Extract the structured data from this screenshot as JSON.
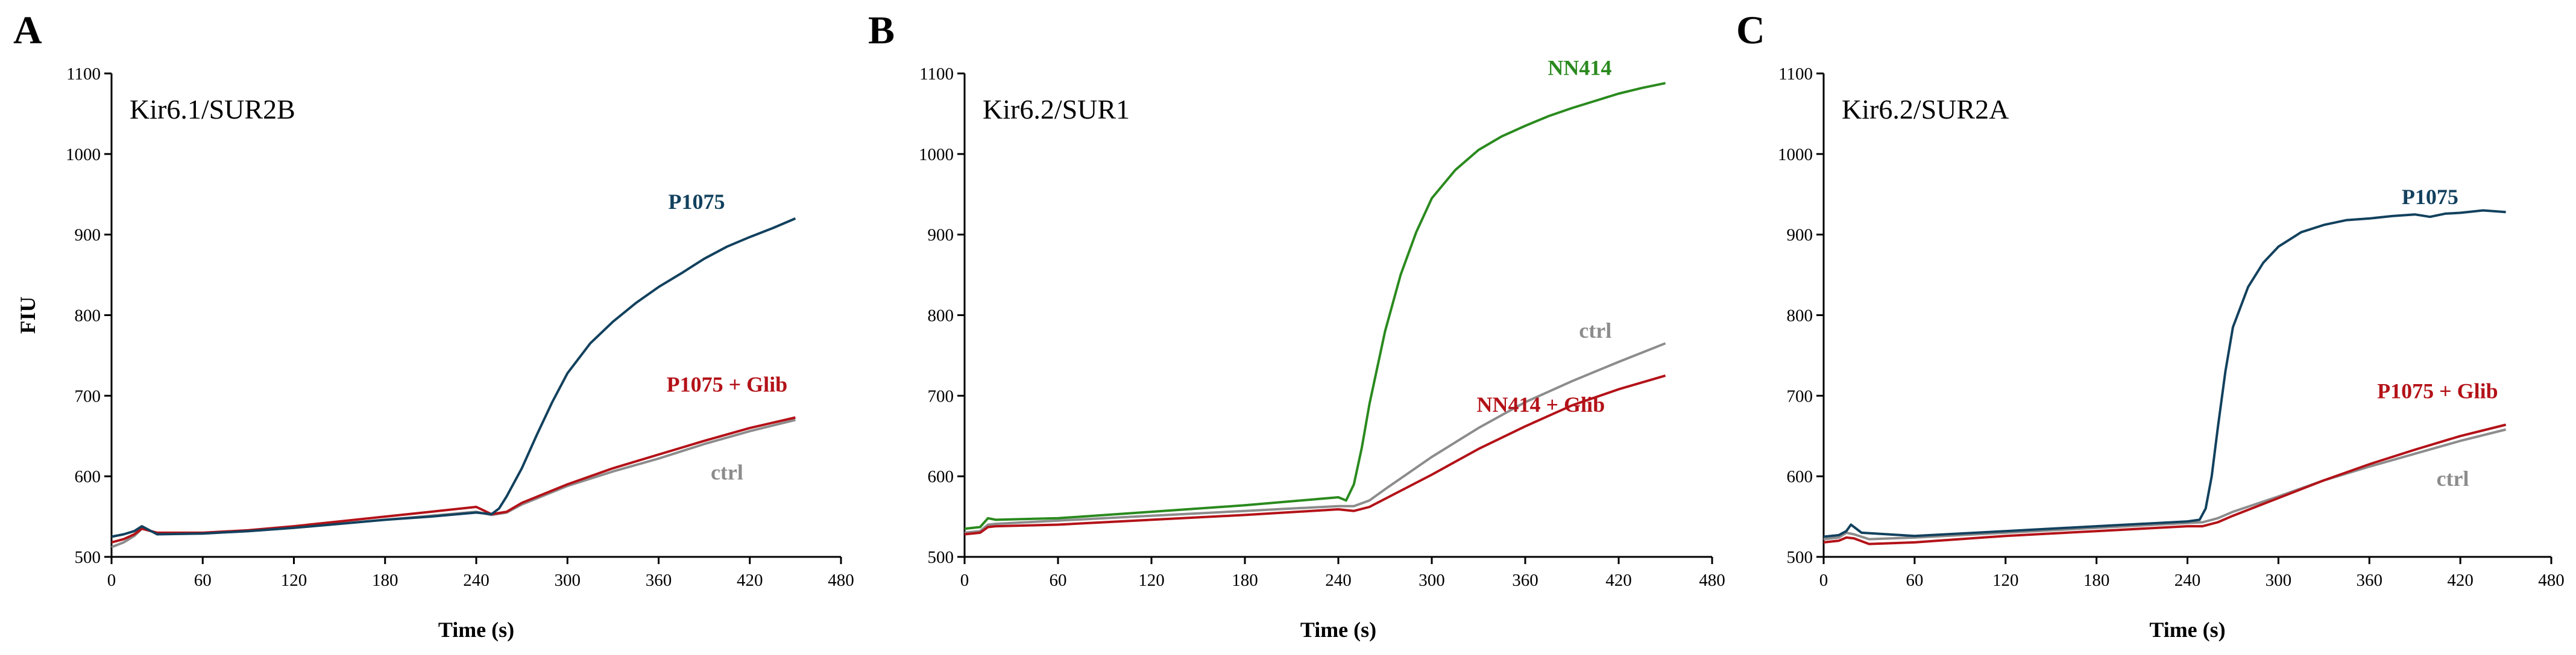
{
  "ylabel": "FIU",
  "chart_data": [
    {
      "type": "line",
      "panel": "A",
      "title": "Kir6.1/SUR2B",
      "xlabel": "Time (s)",
      "ylabel": "FIU",
      "xlim": [
        0,
        480
      ],
      "ylim": [
        500,
        1100
      ],
      "xticks": [
        0,
        60,
        120,
        180,
        240,
        300,
        360,
        420,
        480
      ],
      "yticks": [
        500,
        600,
        700,
        800,
        900,
        1000,
        1100
      ],
      "series": [
        {
          "name": "ctrl",
          "color": "#8c8c8c",
          "label_pos": [
            405,
            596
          ],
          "x": [
            0,
            8,
            15,
            20,
            30,
            60,
            90,
            120,
            150,
            180,
            210,
            240,
            250,
            260,
            270,
            300,
            330,
            360,
            390,
            420,
            450
          ],
          "y": [
            512,
            518,
            526,
            535,
            530,
            529,
            532,
            536,
            541,
            546,
            551,
            556,
            552,
            555,
            565,
            588,
            606,
            622,
            640,
            656,
            670
          ]
        },
        {
          "name": "P1075 + Glib",
          "color": "#b31218",
          "label_pos": [
            405,
            705
          ],
          "x": [
            0,
            8,
            15,
            20,
            30,
            60,
            90,
            120,
            150,
            180,
            210,
            240,
            250,
            260,
            270,
            300,
            330,
            360,
            390,
            420,
            450
          ],
          "y": [
            518,
            522,
            528,
            535,
            530,
            530,
            533,
            538,
            544,
            550,
            556,
            562,
            553,
            556,
            567,
            590,
            610,
            627,
            644,
            660,
            673
          ]
        },
        {
          "name": "P1075",
          "color": "#12415e",
          "label_pos": [
            385,
            932
          ],
          "x": [
            0,
            8,
            15,
            20,
            30,
            60,
            90,
            120,
            150,
            180,
            210,
            240,
            250,
            255,
            260,
            270,
            280,
            290,
            300,
            315,
            330,
            345,
            360,
            375,
            390,
            405,
            420,
            435,
            450
          ],
          "y": [
            525,
            528,
            532,
            538,
            528,
            529,
            532,
            536,
            541,
            546,
            550,
            555,
            553,
            560,
            575,
            610,
            652,
            692,
            728,
            765,
            792,
            815,
            835,
            852,
            870,
            885,
            897,
            908,
            920
          ]
        }
      ]
    },
    {
      "type": "line",
      "panel": "B",
      "title": "Kir6.2/SUR1",
      "xlabel": "Time (s)",
      "ylabel": "",
      "xlim": [
        0,
        480
      ],
      "ylim": [
        500,
        1100
      ],
      "xticks": [
        0,
        60,
        120,
        180,
        240,
        300,
        360,
        420,
        480
      ],
      "yticks": [
        500,
        600,
        700,
        800,
        900,
        1000,
        1100
      ],
      "series": [
        {
          "name": "ctrl",
          "color": "#8c8c8c",
          "label_pos": [
            405,
            772
          ],
          "x": [
            0,
            10,
            15,
            20,
            60,
            120,
            180,
            240,
            250,
            260,
            270,
            300,
            330,
            360,
            390,
            420,
            450
          ],
          "y": [
            530,
            532,
            540,
            541,
            545,
            551,
            557,
            563,
            563,
            570,
            584,
            624,
            660,
            692,
            718,
            742,
            765
          ]
        },
        {
          "name": "NN414 + Glib",
          "color": "#b31218",
          "label_pos": [
            370,
            680
          ],
          "x": [
            0,
            10,
            15,
            20,
            60,
            120,
            180,
            240,
            250,
            260,
            270,
            300,
            330,
            360,
            390,
            420,
            450
          ],
          "y": [
            528,
            530,
            537,
            538,
            540,
            546,
            552,
            559,
            557,
            562,
            572,
            602,
            634,
            662,
            688,
            708,
            725
          ]
        },
        {
          "name": "NN414",
          "color": "#2a8a1e",
          "label_pos": [
            395,
            1098
          ],
          "x": [
            0,
            10,
            15,
            20,
            60,
            120,
            180,
            240,
            245,
            250,
            255,
            260,
            270,
            280,
            290,
            300,
            315,
            330,
            345,
            360,
            375,
            390,
            405,
            420,
            435,
            450
          ],
          "y": [
            535,
            537,
            548,
            546,
            548,
            556,
            564,
            574,
            570,
            590,
            635,
            690,
            780,
            850,
            903,
            945,
            980,
            1005,
            1022,
            1035,
            1047,
            1057,
            1066,
            1075,
            1082,
            1088
          ]
        }
      ]
    },
    {
      "type": "line",
      "panel": "C",
      "title": "Kir6.2/SUR2A",
      "xlabel": "Time (s)",
      "ylabel": "",
      "xlim": [
        0,
        480
      ],
      "ylim": [
        500,
        1100
      ],
      "xticks": [
        0,
        60,
        120,
        180,
        240,
        300,
        360,
        420,
        480
      ],
      "yticks": [
        500,
        600,
        700,
        800,
        900,
        1000,
        1100
      ],
      "series": [
        {
          "name": "ctrl",
          "color": "#8c8c8c",
          "label_pos": [
            415,
            588
          ],
          "x": [
            0,
            10,
            15,
            20,
            30,
            60,
            120,
            180,
            240,
            250,
            260,
            270,
            300,
            330,
            360,
            390,
            420,
            450
          ],
          "y": [
            522,
            524,
            530,
            528,
            522,
            524,
            530,
            536,
            542,
            543,
            548,
            556,
            575,
            595,
            612,
            628,
            644,
            658
          ]
        },
        {
          "name": "P1075 + Glib",
          "color": "#b31218",
          "label_pos": [
            405,
            697
          ],
          "x": [
            0,
            10,
            15,
            20,
            30,
            60,
            120,
            180,
            240,
            250,
            260,
            270,
            300,
            330,
            360,
            390,
            420,
            450
          ],
          "y": [
            518,
            520,
            524,
            523,
            516,
            518,
            526,
            532,
            538,
            538,
            543,
            551,
            573,
            595,
            615,
            633,
            650,
            664
          ]
        },
        {
          "name": "P1075",
          "color": "#12415e",
          "label_pos": [
            400,
            938
          ],
          "x": [
            0,
            10,
            15,
            18,
            25,
            60,
            120,
            180,
            240,
            248,
            252,
            256,
            260,
            265,
            270,
            280,
            290,
            300,
            315,
            330,
            345,
            360,
            375,
            390,
            400,
            410,
            420,
            435,
            450
          ],
          "y": [
            525,
            527,
            532,
            540,
            530,
            526,
            532,
            538,
            544,
            546,
            560,
            600,
            660,
            730,
            785,
            835,
            865,
            885,
            903,
            912,
            918,
            920,
            923,
            925,
            922,
            926,
            927,
            930,
            928
          ]
        }
      ]
    }
  ]
}
